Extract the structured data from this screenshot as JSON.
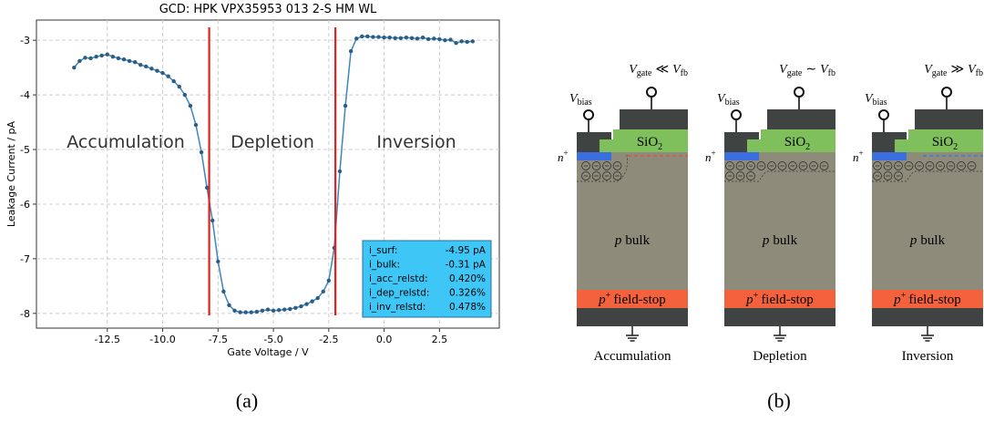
{
  "chart_data": {
    "type": "line",
    "title": "GCD: HPK VPX35953 013 2-S HM WL",
    "x_label": "Gate Voltage / V",
    "y_label": "Leakage Current / pA",
    "x": [
      -14,
      -13.75,
      -13.5,
      -13.25,
      -13,
      -12.75,
      -12.5,
      -12.25,
      -12,
      -11.75,
      -11.5,
      -11.25,
      -11,
      -10.75,
      -10.5,
      -10.25,
      -10,
      -9.75,
      -9.5,
      -9.25,
      -9,
      -8.75,
      -8.5,
      -8.25,
      -8,
      -7.75,
      -7.5,
      -7.25,
      -7,
      -6.75,
      -6.5,
      -6.25,
      -6,
      -5.75,
      -5.5,
      -5.25,
      -5,
      -4.75,
      -4.5,
      -4.25,
      -4,
      -3.75,
      -3.5,
      -3.25,
      -3,
      -2.75,
      -2.5,
      -2.25,
      -2,
      -1.75,
      -1.5,
      -1.25,
      -1,
      -0.75,
      -0.5,
      -0.25,
      0,
      0.25,
      0.5,
      0.75,
      1,
      1.25,
      1.5,
      1.75,
      2,
      2.25,
      2.5,
      2.75,
      3,
      3.25,
      3.5,
      3.75,
      4
    ],
    "series": [
      {
        "color": "#3a87bd",
        "values": [
          -3.5,
          -3.38,
          -3.32,
          -3.33,
          -3.3,
          -3.28,
          -3.26,
          -3.3,
          -3.33,
          -3.35,
          -3.38,
          -3.4,
          -3.45,
          -3.48,
          -3.52,
          -3.56,
          -3.6,
          -3.66,
          -3.75,
          -3.85,
          -4.0,
          -4.2,
          -4.55,
          -5.05,
          -5.7,
          -6.3,
          -7.05,
          -7.6,
          -7.85,
          -7.95,
          -7.98,
          -7.98,
          -7.98,
          -7.97,
          -7.95,
          -7.93,
          -7.95,
          -7.94,
          -7.93,
          -7.92,
          -7.9,
          -7.87,
          -7.83,
          -7.78,
          -7.72,
          -7.6,
          -7.4,
          -6.8,
          -5.4,
          -4.2,
          -3.2,
          -2.97,
          -2.93,
          -2.93,
          -2.94,
          -2.94,
          -2.95,
          -2.95,
          -2.96,
          -2.96,
          -2.95,
          -2.96,
          -2.97,
          -2.95,
          -2.98,
          -2.97,
          -2.98,
          -3.0,
          -2.99,
          -3.05,
          -3.02,
          -3.03,
          -3.02
        ]
      }
    ],
    "xlim": [
      -15.7,
      5.2
    ],
    "ylim": [
      -8.27,
      -2.63
    ],
    "xticks": [
      -12.5,
      {
        "value": -10,
        "label": "-10.0"
      },
      -7.5,
      {
        "value": -5,
        "label": "-5.0"
      },
      -2.5,
      {
        "value": 0,
        "label": "0.0"
      },
      2.5
    ],
    "yticks": [
      -3,
      -4,
      -5,
      -6,
      -7,
      -8
    ],
    "grid": true,
    "vlines": {
      "color": "#e0201b",
      "values": [
        -7.9,
        -2.2
      ]
    },
    "regions": [
      "Accumulation",
      "Depletion",
      "Inversion"
    ],
    "stats": [
      {
        "label": "i_surf:",
        "value": "-4.95 pA"
      },
      {
        "label": "i_bulk:",
        "value": "-0.31 pA"
      },
      {
        "label": "i_acc_relstd:",
        "value": "0.420%"
      },
      {
        "label": "i_dep_relstd:",
        "value": "0.326%"
      },
      {
        "label": "i_inv_relstd:",
        "value": "0.478%"
      }
    ]
  },
  "diagram": {
    "symbol": "V",
    "gate_sub": "gate",
    "fb_sub": "fb",
    "bias_sub": "bias",
    "oxide": "SiO",
    "oxide_sub": "2",
    "implant": "n",
    "plus": "+",
    "bulk_type": "p",
    "bulk": "bulk",
    "field_stop": "field-stop",
    "panels": [
      {
        "relation": "≪",
        "caption": "Accumulation"
      },
      {
        "relation": "∼",
        "caption": "Depletion"
      },
      {
        "relation": "≫",
        "caption": "Inversion"
      }
    ]
  },
  "captions": [
    "(a)",
    "(b)"
  ]
}
